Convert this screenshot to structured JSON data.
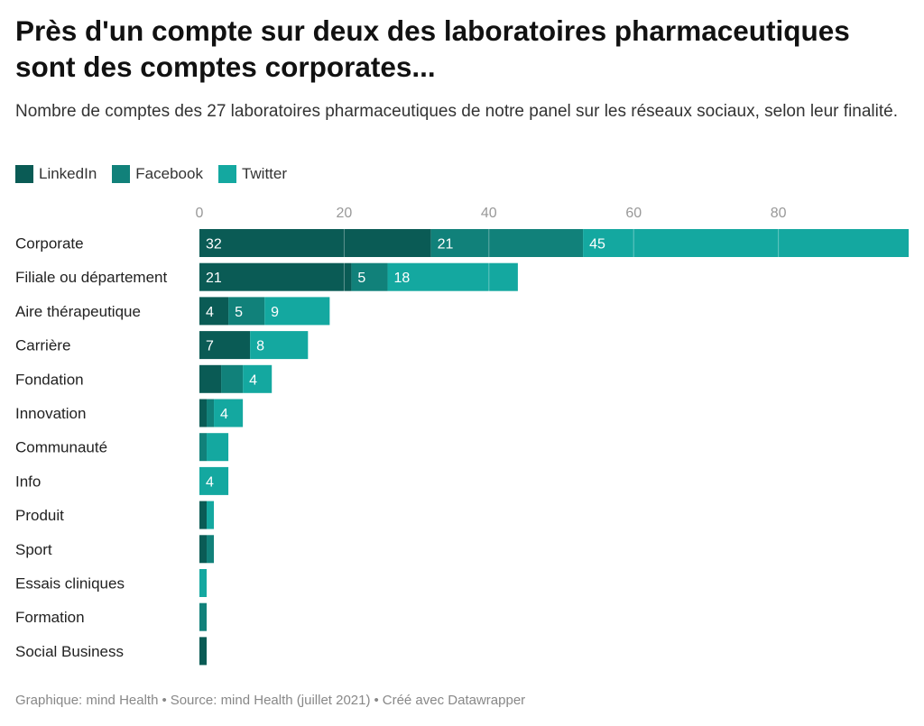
{
  "title": "Près d'un compte sur deux des laboratoires pharmaceutiques sont des comptes corporates...",
  "subtitle": "Nombre de comptes des 27 laboratoires pharmaceutiques de notre panel sur les réseaux sociaux, selon leur finalité.",
  "footer": {
    "graphique": "Graphique: mind Health",
    "source": "Source: mind Health (juillet 2021)",
    "created": "Créé avec Datawrapper",
    "separator": "•"
  },
  "colors": {
    "LinkedIn": "#0a5b55",
    "Facebook": "#11817a",
    "Twitter": "#14a8a0"
  },
  "chart_data": {
    "type": "bar",
    "orientation": "horizontal",
    "stacked": true,
    "categories": [
      "Corporate",
      "Filiale ou département",
      "Aire thérapeutique",
      "Carrière",
      "Fondation",
      "Innovation",
      "Communauté",
      "Info",
      "Produit",
      "Sport",
      "Essais cliniques",
      "Formation",
      "Social Business"
    ],
    "series": [
      {
        "name": "LinkedIn",
        "values": [
          32,
          21,
          4,
          7,
          3,
          1,
          0,
          0,
          1,
          1,
          0,
          0,
          1
        ]
      },
      {
        "name": "Facebook",
        "values": [
          21,
          5,
          5,
          0,
          3,
          1,
          1,
          0,
          0,
          1,
          0,
          1,
          0
        ]
      },
      {
        "name": "Twitter",
        "values": [
          45,
          18,
          9,
          8,
          4,
          4,
          3,
          4,
          1,
          0,
          1,
          0,
          0
        ]
      }
    ],
    "value_labels_shown_min": 4,
    "xlim": [
      0,
      98
    ],
    "xticks": [
      0,
      20,
      40,
      60,
      80
    ],
    "grid": true,
    "legend": "top-left"
  }
}
